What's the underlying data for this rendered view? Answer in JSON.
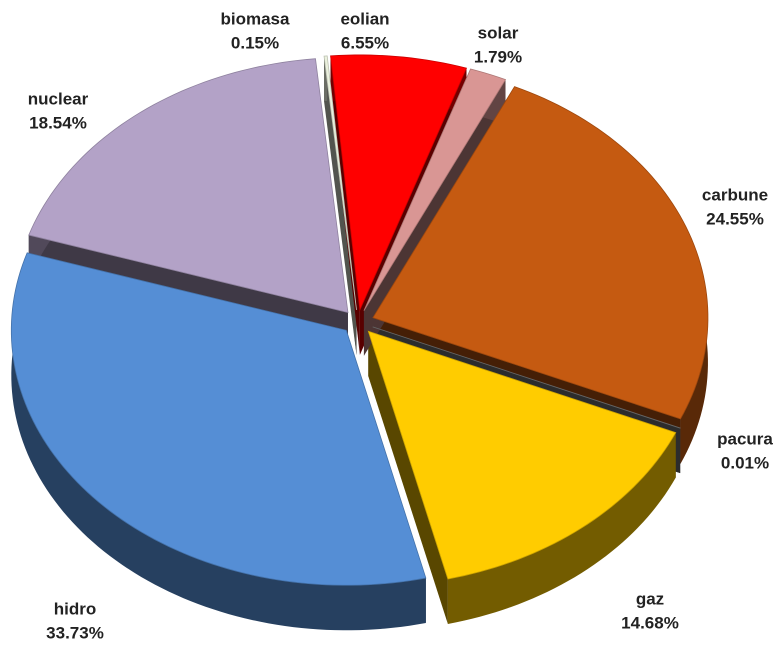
{
  "chart_data": {
    "type": "pie",
    "categories": [
      "carbune",
      "pacura",
      "gaz",
      "hidro",
      "nuclear",
      "biomasa",
      "eolian",
      "solar"
    ],
    "values": [
      24.55,
      0.01,
      14.68,
      33.73,
      18.54,
      0.15,
      6.55,
      1.79
    ],
    "value_labels": [
      "24.55%",
      "0.01%",
      "14.68%",
      "33.73%",
      "18.54%",
      "0.15%",
      "6.55%",
      "1.79%"
    ],
    "colors": [
      "#c55a11",
      "#7f7f7f",
      "#ffcc00",
      "#558ed5",
      "#b3a2c7",
      "#ebf1de",
      "#ff0000",
      "#d99694"
    ]
  }
}
